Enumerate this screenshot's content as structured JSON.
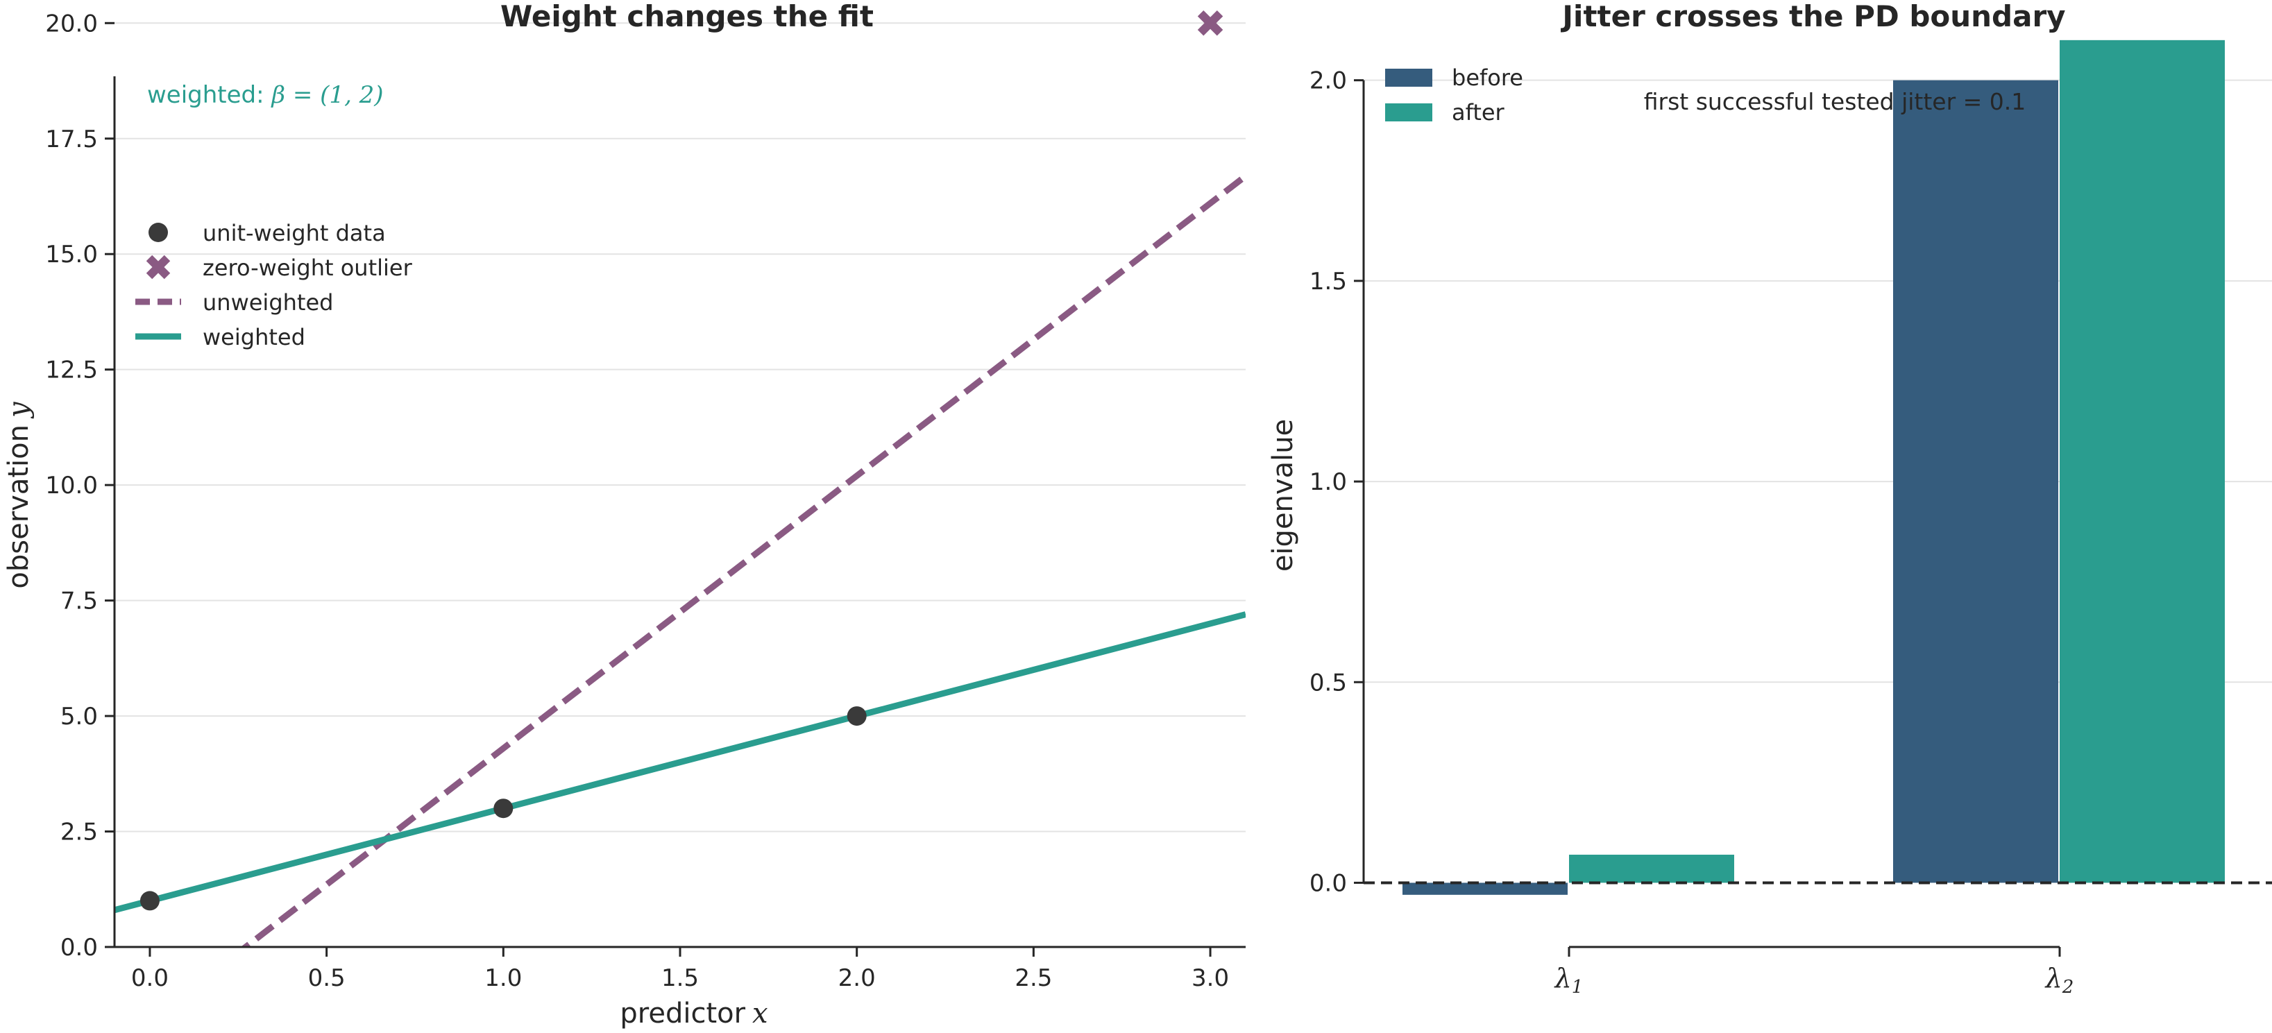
{
  "chart_data": [
    {
      "type": "line",
      "title": "Weight changes the fit",
      "xlabel": "predictor",
      "xlabel_var": "x",
      "ylabel": "observation",
      "ylabel_var": "y",
      "xlim": [
        -0.1,
        3.1
      ],
      "ylim": [
        0,
        20.5
      ],
      "xticks": [
        0.0,
        0.5,
        1.0,
        1.5,
        2.0,
        2.5,
        3.0
      ],
      "xtick_labels": [
        "0.0",
        "0.5",
        "1.0",
        "1.5",
        "2.0",
        "2.5",
        "3.0"
      ],
      "yticks": [
        0.0,
        2.5,
        5.0,
        7.5,
        10.0,
        12.5,
        15.0,
        17.5,
        20.0
      ],
      "ytick_labels": [
        "0.0",
        "2.5",
        "5.0",
        "7.5",
        "10.0",
        "12.5",
        "15.0",
        "17.5",
        "20.0"
      ],
      "grid": "y",
      "legend_position": "upper-left",
      "annotation": {
        "prefix": "weighted: ",
        "math": "β = (1, 2)",
        "color": "#2a9d8f",
        "x": 0.0,
        "y": 20.0
      },
      "series": [
        {
          "name": "unit-weight data",
          "kind": "scatter",
          "marker": "circle",
          "color": "#3a3a3a",
          "x": [
            0,
            1,
            2
          ],
          "y": [
            1,
            3,
            5
          ]
        },
        {
          "name": "zero-weight outlier",
          "kind": "scatter",
          "marker": "x",
          "color": "#8a5a83",
          "x": [
            3
          ],
          "y": [
            20
          ]
        },
        {
          "name": "unweighted",
          "kind": "line",
          "style": "dashed",
          "color": "#8a5a83",
          "intercept": -1.6,
          "slope": 5.9
        },
        {
          "name": "weighted",
          "kind": "line",
          "style": "solid",
          "color": "#2a9d8f",
          "intercept": 1,
          "slope": 2
        }
      ]
    },
    {
      "type": "bar",
      "title": "Jitter crosses the PD boundary",
      "xlabel": "",
      "ylabel": "eigenvalue",
      "categories": [
        "λ1",
        "λ2"
      ],
      "category_symbols": [
        {
          "base": "λ",
          "sub": "1"
        },
        {
          "base": "λ",
          "sub": "2"
        }
      ],
      "ylim": [
        -0.16,
        2.2
      ],
      "yticks": [
        0.0,
        0.5,
        1.0,
        1.5,
        2.0
      ],
      "ytick_labels": [
        "0.0",
        "0.5",
        "1.0",
        "1.5",
        "2.0"
      ],
      "grid": "y",
      "legend_position": "upper-left",
      "zero_line": "dashed",
      "annotation": "first successful tested jitter = 0.1",
      "series": [
        {
          "name": "before",
          "color": "#355c7d",
          "values": [
            -0.03,
            2.0
          ]
        },
        {
          "name": "after",
          "color": "#2a9d8f",
          "values": [
            0.07,
            2.1
          ]
        }
      ]
    }
  ]
}
